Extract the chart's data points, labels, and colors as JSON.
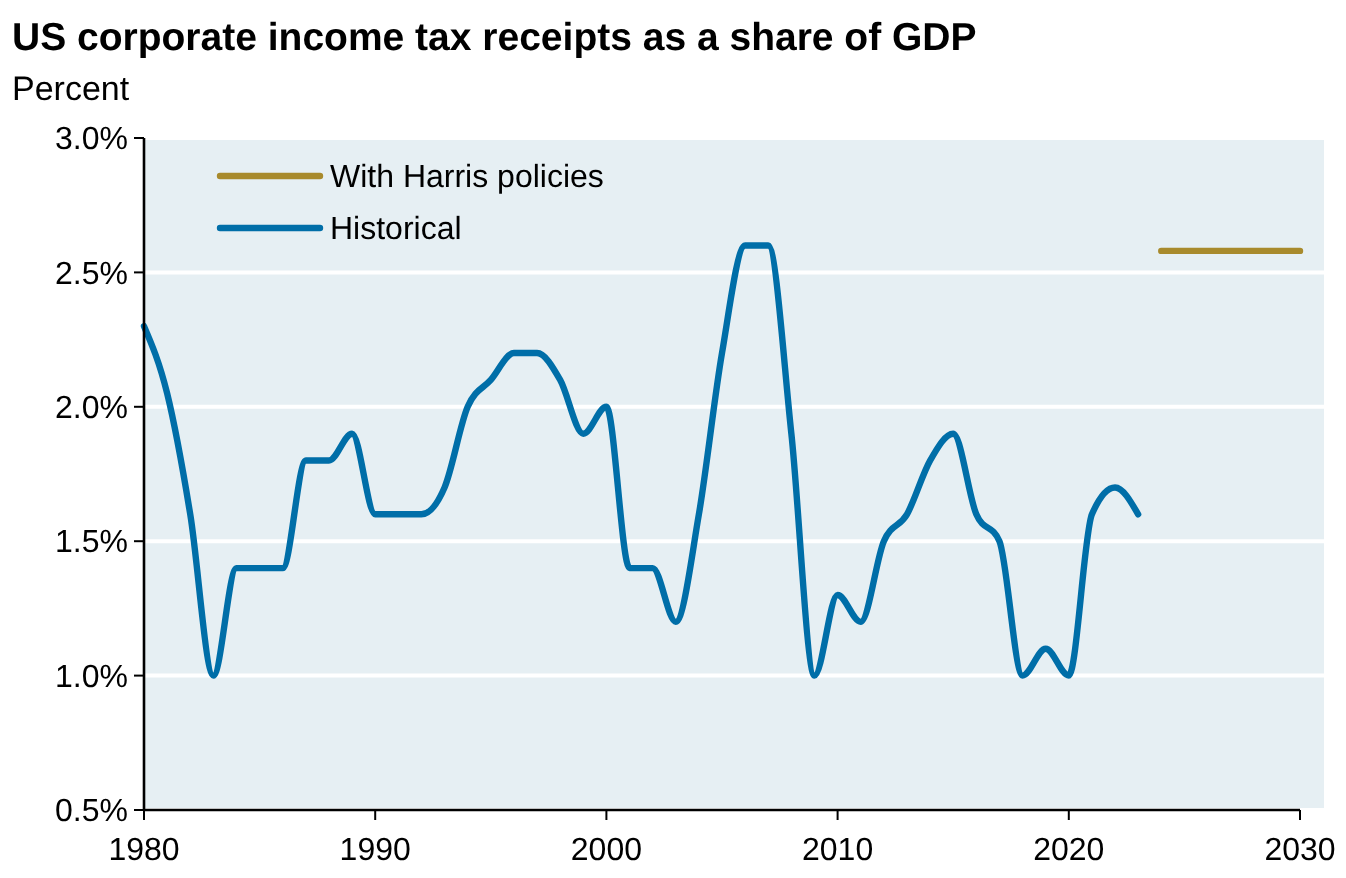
{
  "chart_data": {
    "type": "line",
    "title": "US corporate income tax receipts as a share of GDP",
    "subtitle": "Percent",
    "xlim": [
      1980,
      2030
    ],
    "xticks": [
      1980,
      1990,
      2000,
      2010,
      2020,
      2030
    ],
    "ylim": [
      0.5,
      3.0
    ],
    "yticks": [
      {
        "value": 0.5,
        "label": "0.5%"
      },
      {
        "value": 1.0,
        "label": "1.0%"
      },
      {
        "value": 1.5,
        "label": "1.5%"
      },
      {
        "value": 2.0,
        "label": "2.0%"
      },
      {
        "value": 2.5,
        "label": "2.5%"
      },
      {
        "value": 3.0,
        "label": "3.0%"
      }
    ],
    "grid": "y",
    "legend": "top left",
    "line_style": "solid",
    "series": [
      {
        "name": "With Harris policies",
        "color": "#a88a2c",
        "x": [
          2024,
          2030
        ],
        "values": [
          2.58,
          2.58
        ]
      },
      {
        "name": "Historical",
        "color": "#006ea8",
        "x": [
          1980,
          1981,
          1982,
          1983,
          1984,
          1985,
          1986,
          1987,
          1988,
          1989,
          1990,
          1991,
          1992,
          1993,
          1994,
          1995,
          1996,
          1997,
          1998,
          1999,
          2000,
          2001,
          2002,
          2003,
          2004,
          2005,
          2006,
          2007,
          2008,
          2009,
          2010,
          2011,
          2012,
          2013,
          2014,
          2015,
          2016,
          2017,
          2018,
          2019,
          2020,
          2021,
          2022,
          2023
        ],
        "values": [
          2.3,
          2.05,
          1.6,
          1.0,
          1.4,
          1.4,
          1.4,
          1.8,
          1.8,
          1.9,
          1.6,
          1.6,
          1.6,
          1.7,
          2.0,
          2.1,
          2.2,
          2.2,
          2.1,
          1.9,
          2.0,
          1.4,
          1.4,
          1.2,
          1.6,
          2.2,
          2.6,
          2.6,
          1.9,
          1.0,
          1.3,
          1.2,
          1.5,
          1.6,
          1.8,
          1.9,
          1.6,
          1.5,
          1.0,
          1.1,
          1.0,
          1.6,
          1.7,
          1.6
        ]
      }
    ]
  }
}
